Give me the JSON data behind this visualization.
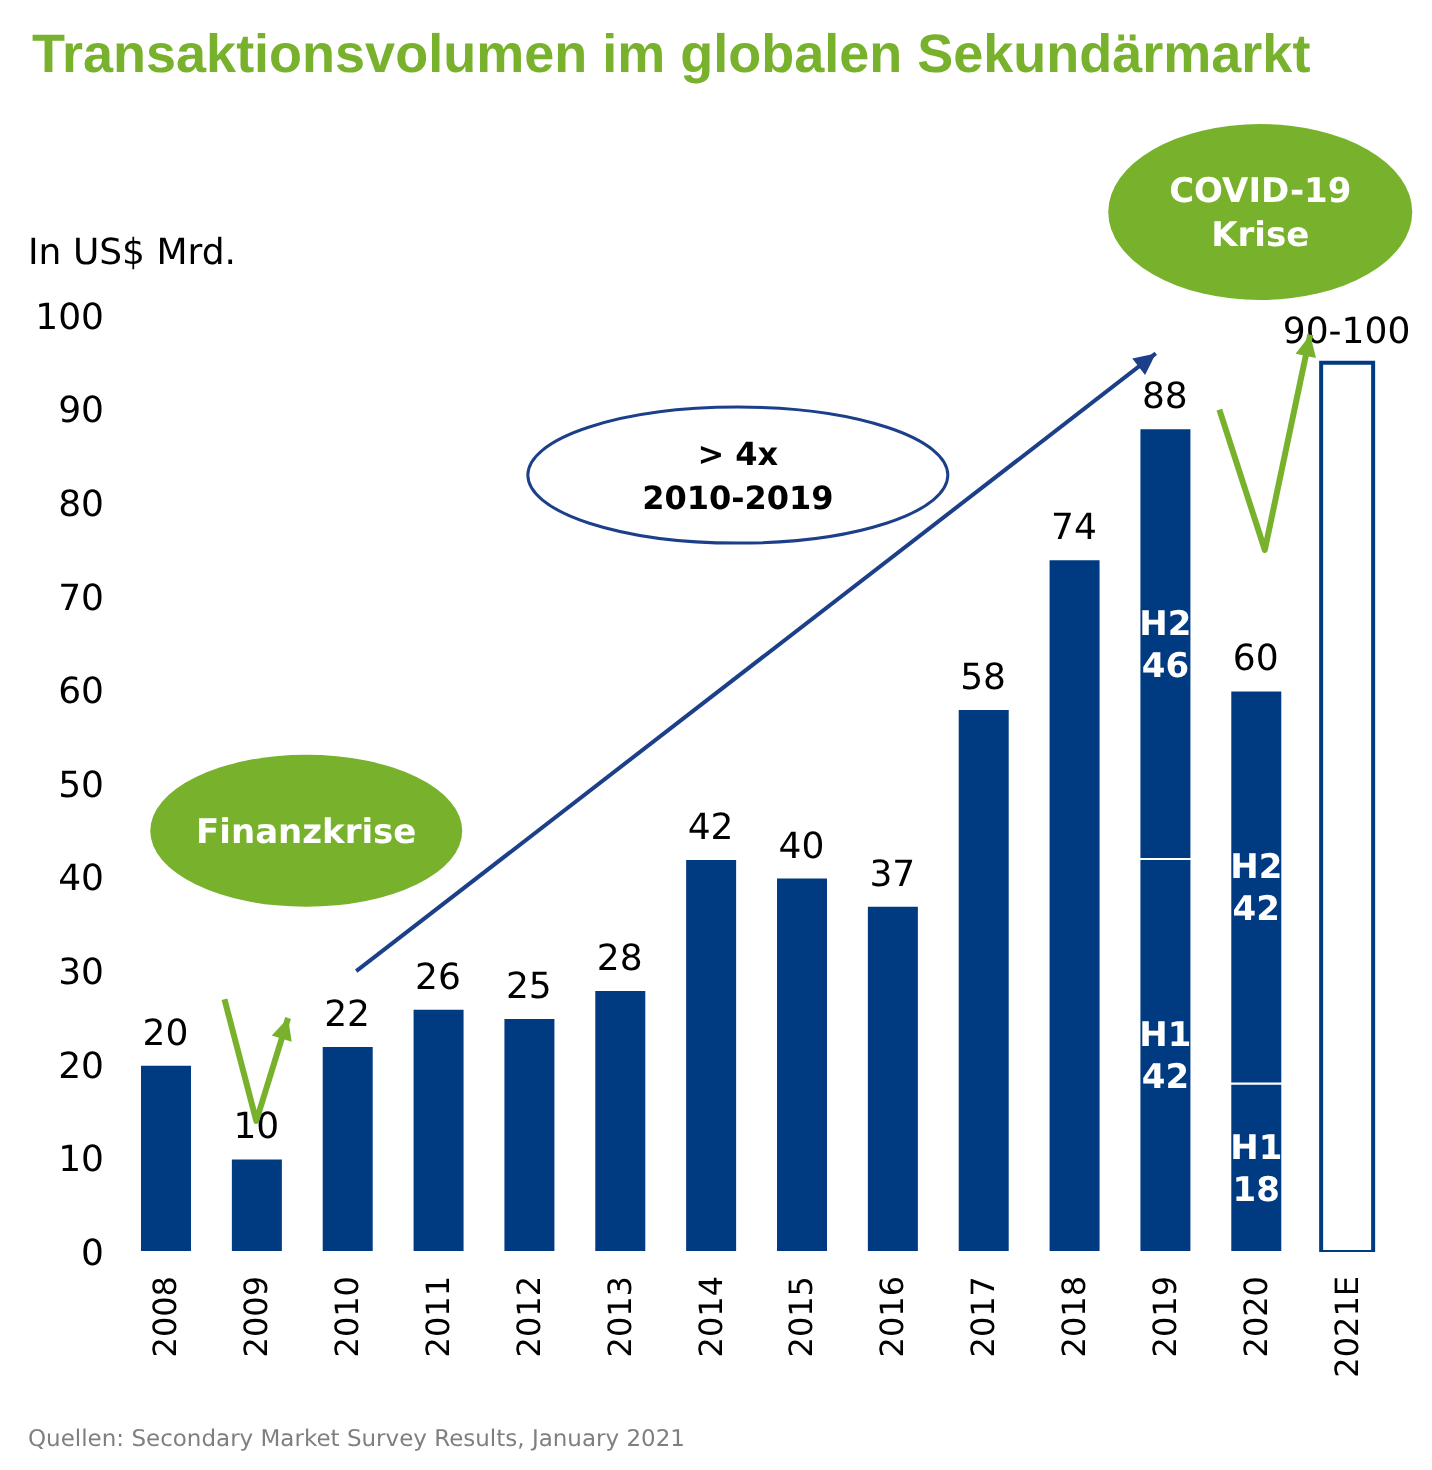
{
  "chart_data": {
    "type": "bar",
    "title": "Transaktionsvolumen im globalen Sekundärmarkt",
    "ylabel": "In US$ Mrd.",
    "categories": [
      "2008",
      "2009",
      "2010",
      "2011",
      "2012",
      "2013",
      "2014",
      "2015",
      "2016",
      "2017",
      "2018",
      "2019",
      "2020",
      "2021E"
    ],
    "stacked": true,
    "series": [
      {
        "color": "#003a80",
        "colors": [
          "#003a80",
          "#003a80",
          "#003a80",
          "#003a80",
          "#003a80",
          "#003a80",
          "#003a80",
          "#003a80",
          "#003a80",
          "#003a80",
          "#003a80",
          "#003a80",
          "#003a80",
          "#ffffff"
        ],
        "values": [
          20,
          10,
          22,
          26,
          25,
          28,
          42,
          40,
          37,
          58,
          74,
          42,
          18,
          95
        ],
        "value_labels": [
          null,
          null,
          null,
          null,
          null,
          null,
          null,
          null,
          null,
          null,
          null,
          "H1 42",
          "H1 18",
          null
        ]
      },
      {
        "color": "#003a80",
        "values": [
          null,
          null,
          null,
          null,
          null,
          null,
          null,
          null,
          null,
          null,
          null,
          46,
          42,
          null
        ],
        "value_labels": [
          null,
          null,
          null,
          null,
          null,
          null,
          null,
          null,
          null,
          null,
          null,
          "H2 46",
          "H2 42",
          null
        ]
      }
    ],
    "totals": [
      "20",
      "10",
      "22",
      "26",
      "25",
      "28",
      "42",
      "40",
      "37",
      "58",
      "74",
      "88",
      "60",
      "90-100"
    ],
    "ylim": [
      0,
      100
    ],
    "yticks": [
      0,
      10,
      20,
      30,
      40,
      50,
      60,
      70,
      80,
      90,
      100
    ],
    "annotations": [
      "Finanzkrise",
      "COVID-19 Krise",
      "> 4x 2010-2019",
      "Quellen: Secondary Market Survey Results, January 2021"
    ]
  }
}
